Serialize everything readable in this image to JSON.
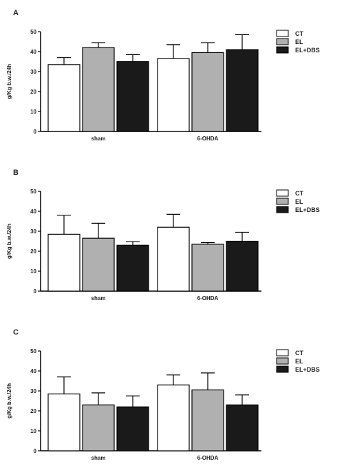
{
  "chart_data": [
    {
      "type": "bar",
      "panel_label": "A",
      "ylabel": "g/Kg b.w./24h",
      "ylim": [
        0,
        50
      ],
      "yticks": [
        "0",
        "10",
        "20",
        "30",
        "40",
        "50"
      ],
      "categories": [
        "sham",
        "6-OHDA"
      ],
      "series": [
        {
          "name": "CT",
          "values": [
            33.5,
            36.5
          ],
          "errors": [
            3.5,
            7.0
          ],
          "color": "#ffffff"
        },
        {
          "name": "EL",
          "values": [
            42.0,
            39.5
          ],
          "errors": [
            2.5,
            5.0
          ],
          "color": "#b0b0b0"
        },
        {
          "name": "EL+DBS",
          "values": [
            35.0,
            41.0
          ],
          "errors": [
            3.5,
            7.5
          ],
          "color": "#1a1a1a"
        }
      ],
      "legend_position": "top-right"
    },
    {
      "type": "bar",
      "panel_label": "B",
      "ylabel": "g/Kg b.w./24h",
      "ylim": [
        0,
        50
      ],
      "yticks": [
        "0",
        "10",
        "20",
        "30",
        "40",
        "50"
      ],
      "categories": [
        "sham",
        "6-OHDA"
      ],
      "series": [
        {
          "name": "CT",
          "values": [
            28.5,
            32.0
          ],
          "errors": [
            9.5,
            6.5
          ],
          "color": "#ffffff"
        },
        {
          "name": "EL",
          "values": [
            26.5,
            23.5
          ],
          "errors": [
            7.5,
            0.8
          ],
          "color": "#b0b0b0"
        },
        {
          "name": "EL+DBS",
          "values": [
            23.0,
            25.0
          ],
          "errors": [
            1.8,
            4.5
          ],
          "color": "#1a1a1a"
        }
      ],
      "legend_position": "top-right"
    },
    {
      "type": "bar",
      "panel_label": "C",
      "ylabel": "g/Kg b.w./24h",
      "ylim": [
        0,
        50
      ],
      "yticks": [
        "0",
        "10",
        "20",
        "30",
        "40",
        "50"
      ],
      "categories": [
        "sham",
        "6-OHDA"
      ],
      "series": [
        {
          "name": "CT",
          "values": [
            28.5,
            33.0
          ],
          "errors": [
            8.5,
            5.0
          ],
          "color": "#ffffff"
        },
        {
          "name": "EL",
          "values": [
            23.0,
            30.5
          ],
          "errors": [
            6.0,
            8.5
          ],
          "color": "#b0b0b0"
        },
        {
          "name": "EL+DBS",
          "values": [
            22.0,
            23.0
          ],
          "errors": [
            5.5,
            5.0
          ],
          "color": "#1a1a1a"
        }
      ],
      "legend_position": "top-right"
    }
  ]
}
